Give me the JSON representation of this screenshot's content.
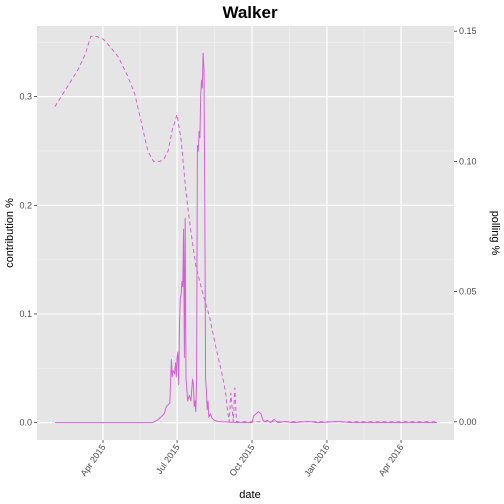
{
  "chart_data": {
    "type": "line",
    "title": "Walker",
    "xlabel": "date",
    "ylabel_left": "contribution %",
    "ylabel_right": "polling %",
    "x_range": [
      "2015-01-10",
      "2016-06-05"
    ],
    "y_left_range": [
      -0.016,
      0.365
    ],
    "y_right_range": [
      -0.007,
      0.152
    ],
    "x_ticks": [
      {
        "date": "2015-04-01",
        "label": "Apr 2015"
      },
      {
        "date": "2015-07-01",
        "label": "Jul 2015"
      },
      {
        "date": "2015-10-01",
        "label": "Oct 2015"
      },
      {
        "date": "2016-01-01",
        "label": "Jan 2016"
      },
      {
        "date": "2016-04-01",
        "label": "Apr 2016"
      }
    ],
    "y_left_ticks": [
      0.0,
      0.1,
      0.2,
      0.3
    ],
    "y_right_ticks": [
      0.0,
      0.05,
      0.1,
      0.15
    ],
    "background": "#e5e5e5",
    "grid": true,
    "line_color": "#d65fd6",
    "series": [
      {
        "axis": "left",
        "style": "solid",
        "points": [
          [
            "2015-02-01",
            0.0
          ],
          [
            "2015-05-15",
            0.0
          ],
          [
            "2015-06-01",
            0.0
          ],
          [
            "2015-06-08",
            0.003
          ],
          [
            "2015-06-15",
            0.008
          ],
          [
            "2015-06-18",
            0.015
          ],
          [
            "2015-06-22",
            0.018
          ],
          [
            "2015-06-24",
            0.058
          ],
          [
            "2015-06-25",
            0.042
          ],
          [
            "2015-06-26",
            0.048
          ],
          [
            "2015-06-28",
            0.045
          ],
          [
            "2015-06-29",
            0.055
          ],
          [
            "2015-06-30",
            0.042
          ],
          [
            "2015-07-01",
            0.06
          ],
          [
            "2015-07-02",
            0.065
          ],
          [
            "2015-07-03",
            0.035
          ],
          [
            "2015-07-04",
            0.09
          ],
          [
            "2015-07-05",
            0.115
          ],
          [
            "2015-07-06",
            0.118
          ],
          [
            "2015-07-07",
            0.13
          ],
          [
            "2015-07-08",
            0.125
          ],
          [
            "2015-07-09",
            0.178
          ],
          [
            "2015-07-10",
            0.06
          ],
          [
            "2015-07-11",
            0.188
          ],
          [
            "2015-07-12",
            0.04
          ],
          [
            "2015-07-13",
            0.03
          ],
          [
            "2015-07-14",
            0.02
          ],
          [
            "2015-07-16",
            0.025
          ],
          [
            "2015-07-18",
            0.02
          ],
          [
            "2015-07-20",
            0.04
          ],
          [
            "2015-07-21",
            0.035
          ],
          [
            "2015-07-22",
            0.015
          ],
          [
            "2015-07-23",
            0.02
          ],
          [
            "2015-07-24",
            0.01
          ],
          [
            "2015-07-25",
            0.04
          ],
          [
            "2015-07-26",
            0.255
          ],
          [
            "2015-07-27",
            0.25
          ],
          [
            "2015-07-28",
            0.268
          ],
          [
            "2015-07-29",
            0.262
          ],
          [
            "2015-07-30",
            0.3
          ],
          [
            "2015-07-31",
            0.315
          ],
          [
            "2015-08-01",
            0.308
          ],
          [
            "2015-08-02",
            0.34
          ],
          [
            "2015-08-03",
            0.325
          ],
          [
            "2015-08-04",
            0.2
          ],
          [
            "2015-08-05",
            0.04
          ],
          [
            "2015-08-06",
            0.03
          ],
          [
            "2015-08-07",
            0.012
          ],
          [
            "2015-08-08",
            0.02
          ],
          [
            "2015-08-09",
            0.005
          ],
          [
            "2015-08-11",
            0.008
          ],
          [
            "2015-08-13",
            0.004
          ],
          [
            "2015-08-16",
            0.002
          ],
          [
            "2015-08-20",
            0.001
          ],
          [
            "2015-09-15",
            0.0
          ],
          [
            "2015-10-01",
            0.0
          ],
          [
            "2015-10-03",
            0.006
          ],
          [
            "2015-10-06",
            0.008
          ],
          [
            "2015-10-09",
            0.01
          ],
          [
            "2015-10-12",
            0.008
          ],
          [
            "2015-10-14",
            0.003
          ],
          [
            "2015-10-16",
            0.001
          ],
          [
            "2015-10-20",
            0.002
          ],
          [
            "2015-10-24",
            0.0
          ],
          [
            "2015-10-28",
            0.003
          ],
          [
            "2015-11-02",
            0.0
          ],
          [
            "2015-11-10",
            0.001
          ],
          [
            "2015-11-20",
            0.0
          ],
          [
            "2015-12-10",
            0.001
          ],
          [
            "2015-12-20",
            0.0
          ],
          [
            "2016-01-15",
            0.001
          ],
          [
            "2016-02-01",
            0.0
          ],
          [
            "2016-05-15",
            0.0
          ]
        ]
      },
      {
        "axis": "right",
        "style": "dashed",
        "points": [
          [
            "2015-02-01",
            0.121
          ],
          [
            "2015-02-15",
            0.128
          ],
          [
            "2015-03-01",
            0.135
          ],
          [
            "2015-03-10",
            0.141
          ],
          [
            "2015-03-17",
            0.148
          ],
          [
            "2015-03-24",
            0.148
          ],
          [
            "2015-04-01",
            0.147
          ],
          [
            "2015-04-10",
            0.144
          ],
          [
            "2015-04-20",
            0.14
          ],
          [
            "2015-05-01",
            0.133
          ],
          [
            "2015-05-10",
            0.126
          ],
          [
            "2015-05-18",
            0.115
          ],
          [
            "2015-05-26",
            0.104
          ],
          [
            "2015-06-02",
            0.1
          ],
          [
            "2015-06-10",
            0.1
          ],
          [
            "2015-06-15",
            0.101
          ],
          [
            "2015-06-20",
            0.104
          ],
          [
            "2015-06-25",
            0.112
          ],
          [
            "2015-07-01",
            0.118
          ],
          [
            "2015-07-06",
            0.108
          ],
          [
            "2015-07-12",
            0.088
          ],
          [
            "2015-07-18",
            0.073
          ],
          [
            "2015-07-24",
            0.06
          ],
          [
            "2015-08-01",
            0.05
          ],
          [
            "2015-08-10",
            0.04
          ],
          [
            "2015-08-18",
            0.028
          ],
          [
            "2015-08-24",
            0.02
          ],
          [
            "2015-08-28",
            0.014
          ],
          [
            "2015-08-30",
            0.01
          ],
          [
            "2015-09-01",
            0.004
          ],
          [
            "2015-09-03",
            0.0
          ],
          [
            "2015-09-05",
            0.011
          ],
          [
            "2015-09-08",
            0.0
          ],
          [
            "2015-09-10",
            0.013
          ],
          [
            "2015-09-12",
            0.0
          ],
          [
            "2015-09-21",
            0.0
          ],
          [
            "2016-05-15",
            0.0
          ]
        ]
      }
    ]
  }
}
